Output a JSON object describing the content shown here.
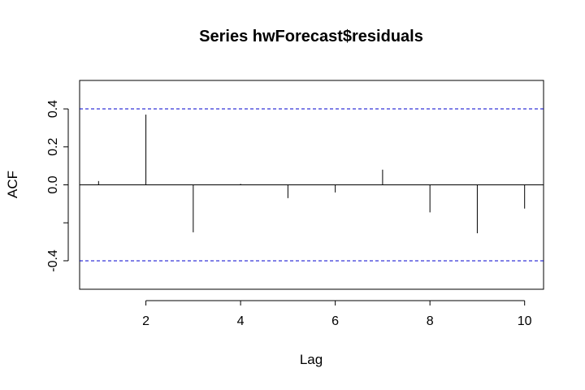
{
  "chart_data": {
    "type": "bar",
    "title": "Series  hwForecast$residuals",
    "xlabel": "Lag",
    "ylabel": "ACF",
    "lags": [
      1,
      2,
      3,
      4,
      5,
      6,
      7,
      8,
      9,
      10
    ],
    "values": [
      0.02,
      0.37,
      -0.25,
      0.005,
      -0.07,
      -0.04,
      0.08,
      -0.145,
      -0.255,
      -0.125
    ],
    "confidence_bound": 0.4,
    "xlim": [
      0.6,
      10.4
    ],
    "ylim": [
      -0.55,
      0.55
    ],
    "x_ticks": [
      2,
      4,
      6,
      8,
      10
    ],
    "y_ticks": [
      -0.4,
      0.2,
      0.0,
      0.2,
      0.4
    ],
    "y_tick_labels": [
      "-0.4",
      "",
      "0.0",
      "0.2",
      "0.4"
    ],
    "x_tick_labels": [
      "2",
      "4",
      "6",
      "8",
      "10"
    ],
    "confidence_line_color": "#0000cc",
    "zero_line": true,
    "grid": false
  }
}
